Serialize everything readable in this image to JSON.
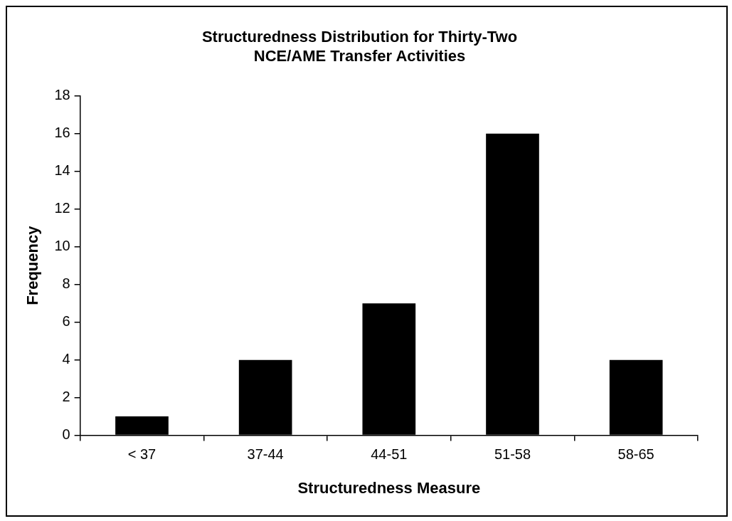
{
  "chart_data": {
    "type": "bar",
    "title": [
      "Structuredness Distribution for Thirty-Two",
      "NCE/AME Transfer Activities"
    ],
    "xlabel": "Structuredness Measure",
    "ylabel": "Frequency",
    "categories": [
      "< 37",
      "37-44",
      "44-51",
      "51-58",
      "58-65"
    ],
    "values": [
      1,
      4,
      7,
      16,
      4
    ],
    "color": "#000000",
    "ylim": [
      0,
      18
    ],
    "yticks": [
      0,
      2,
      4,
      6,
      8,
      10,
      12,
      14,
      16,
      18
    ],
    "grid": false,
    "legend": false
  }
}
